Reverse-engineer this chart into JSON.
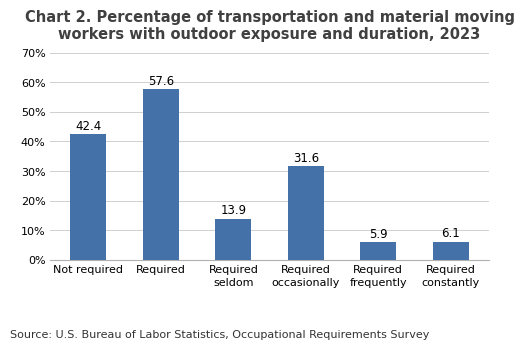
{
  "title": "Chart 2. Percentage of transportation and material moving\nworkers with outdoor exposure and duration, 2023",
  "categories": [
    "Not required",
    "Required",
    "Required\nseldom",
    "Required\noccasionally",
    "Required\nfrequently",
    "Required\nconstantly"
  ],
  "values": [
    42.4,
    57.6,
    13.9,
    31.6,
    5.9,
    6.1
  ],
  "bar_color": "#4472a8",
  "ylim": [
    0,
    70
  ],
  "yticks": [
    0,
    10,
    20,
    30,
    40,
    50,
    60,
    70
  ],
  "source": "Source: U.S. Bureau of Labor Statistics, Occupational Requirements Survey",
  "title_fontsize": 10.5,
  "tick_fontsize": 8.0,
  "label_fontsize": 8.5,
  "source_fontsize": 8.0,
  "bar_width": 0.5,
  "background_color": "#ffffff",
  "title_color": "#404040",
  "grid_color": "#d0d0d0"
}
